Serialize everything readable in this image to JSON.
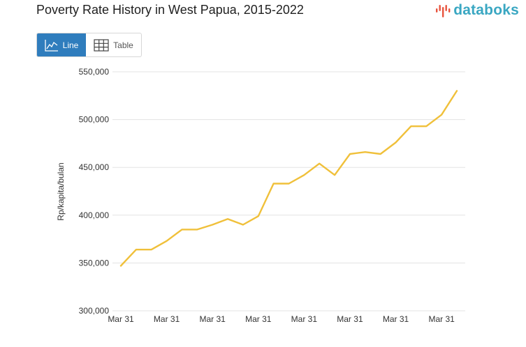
{
  "header": {
    "title": "Poverty Rate History in West Papua, 2015-2022",
    "logo_text": "databoks"
  },
  "view_toggle": {
    "line_label": "Line",
    "table_label": "Table",
    "active": "Line"
  },
  "colors": {
    "line": "#f0c03a",
    "active_button": "#2f7dbd",
    "logo": "#3aa7c2",
    "logo_mark": "#e8533d",
    "grid": "#e3e3e3"
  },
  "chart_data": {
    "type": "line",
    "ylabel": "Rp/kapita/bulan",
    "ylim": [
      300000,
      550000
    ],
    "y_ticks": [
      "550,000",
      "500,000",
      "450,000",
      "400,000",
      "350,000",
      "300,000"
    ],
    "x_tick_labels": [
      "Mar 31",
      "Mar 31",
      "Mar 31",
      "Mar 31",
      "Mar 31",
      "Mar 31",
      "Mar 31",
      "Mar 31"
    ],
    "grid": true,
    "series": [
      {
        "values": [
          347000,
          364000,
          364000,
          373000,
          385000,
          385000,
          390000,
          396000,
          390000,
          399000,
          433000,
          433000,
          442000,
          454000,
          442000,
          464000,
          466000,
          464000,
          476000,
          493000,
          493000,
          505000,
          530000
        ]
      }
    ]
  }
}
